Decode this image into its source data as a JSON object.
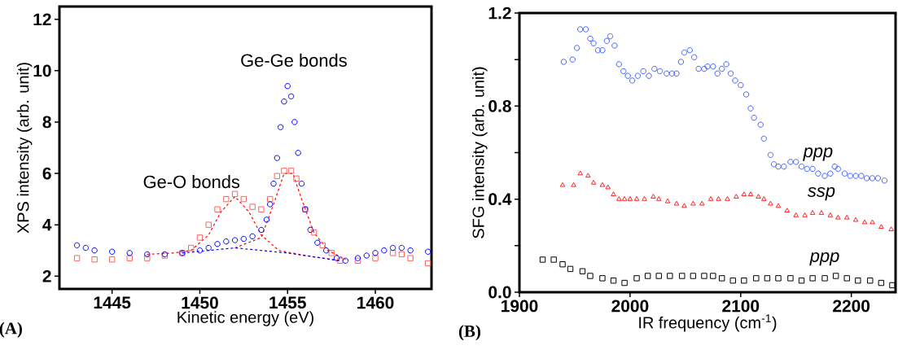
{
  "chart_data": [
    {
      "type": "scatter",
      "xlabel": "Kinetic energy (eV)",
      "ylabel": "XPS intensity (arb. unit)",
      "xlim": [
        1442,
        1463.2
      ],
      "ylim": [
        1.5,
        12.5
      ],
      "xticks": [
        1445,
        1450,
        1455,
        1460
      ],
      "yticks": [
        2,
        4,
        6,
        8,
        10,
        12
      ],
      "series": [
        {
          "type": "line",
          "line_style": "dashed",
          "marker": "none",
          "color": "#ff0000",
          "x": [
            1447,
            1448.5,
            1449.5,
            1450.5,
            1451.2,
            1452,
            1452.8,
            1453.5,
            1454.5,
            1456,
            1458
          ],
          "values": [
            2.85,
            2.9,
            3.0,
            3.6,
            4.5,
            5.1,
            4.5,
            3.6,
            3.0,
            2.8,
            2.6
          ]
        },
        {
          "type": "line",
          "line_style": "dashed",
          "marker": "none",
          "color": "#ff0000",
          "x": [
            1452,
            1453.5,
            1454.2,
            1454.8,
            1455.3,
            1455.8,
            1456.5,
            1457.3,
            1458.3
          ],
          "values": [
            3.1,
            3.5,
            4.8,
            6.0,
            6.0,
            5.0,
            3.7,
            3.0,
            2.65
          ]
        },
        {
          "type": "line",
          "line_style": "dashed",
          "marker": "none",
          "color": "#0000ff",
          "x": [
            1449,
            1452,
            1455,
            1458
          ],
          "values": [
            2.9,
            3.1,
            2.9,
            2.6
          ]
        },
        {
          "marker": "square",
          "color": "#ff6060",
          "x": [
            1443,
            1444,
            1445,
            1446,
            1447,
            1448,
            1449,
            1449.5,
            1450,
            1450.5,
            1451,
            1451.5,
            1452,
            1452.5,
            1453,
            1453.5,
            1454,
            1454.4,
            1454.8,
            1455.2,
            1455.5,
            1456,
            1456.5,
            1457,
            1457.5,
            1458,
            1459,
            1460,
            1461,
            1461.5,
            1462,
            1463
          ],
          "values": [
            2.7,
            2.65,
            2.65,
            2.7,
            2.7,
            2.8,
            2.9,
            3.1,
            3.5,
            4.0,
            4.6,
            5.0,
            5.2,
            5.0,
            4.7,
            4.6,
            5.0,
            5.9,
            6.1,
            6.1,
            5.8,
            4.6,
            3.7,
            3.2,
            2.9,
            2.6,
            2.6,
            2.7,
            2.9,
            2.85,
            2.7,
            2.5
          ]
        },
        {
          "marker": "circle",
          "color": "#0000ff",
          "x": [
            1443,
            1443.5,
            1444,
            1445,
            1446,
            1447,
            1448,
            1449,
            1450,
            1450.5,
            1451,
            1451.5,
            1452,
            1452.5,
            1453,
            1453.5,
            1453.8,
            1454,
            1454.2,
            1454.4,
            1454.6,
            1454.8,
            1455,
            1455.2,
            1455.4,
            1455.6,
            1455.8,
            1456,
            1456.3,
            1456.7,
            1457.2,
            1457.8,
            1458.3,
            1459,
            1459.5,
            1460,
            1460.5,
            1461,
            1461.5,
            1462,
            1463
          ],
          "values": [
            3.2,
            3.1,
            3.0,
            2.95,
            2.9,
            2.85,
            2.85,
            2.9,
            3.0,
            3.1,
            3.25,
            3.35,
            3.4,
            3.45,
            3.55,
            3.8,
            4.2,
            4.8,
            5.6,
            6.6,
            7.8,
            8.8,
            9.4,
            9.0,
            8.0,
            6.8,
            5.6,
            4.6,
            3.8,
            3.3,
            3.0,
            2.7,
            2.6,
            2.7,
            2.8,
            2.9,
            3.0,
            3.1,
            3.1,
            3.0,
            2.95
          ]
        }
      ],
      "annotations": [
        "Ge-Ge bonds",
        "Ge-O bonds",
        "(A)"
      ]
    },
    {
      "type": "scatter",
      "xlabel": "IR frequency (cm$^{-1}$)",
      "ylabel": "SFG intensity (arb. unit)",
      "xlim": [
        1900,
        2240
      ],
      "ylim": [
        0,
        1.2
      ],
      "xticks": [
        1900,
        2000,
        2100,
        2200
      ],
      "yticks": [
        {
          "value": 0,
          "label": "0.0"
        },
        {
          "value": 0.2,
          "label": null
        },
        0.4,
        {
          "value": 0.6,
          "label": null
        },
        0.8,
        {
          "value": 1.0,
          "label": null
        },
        1.2
      ],
      "series": [
        {
          "name": "ppp",
          "marker": "circle",
          "color": "#4060ff",
          "x": [
            1940,
            1948,
            1952,
            1955,
            1960,
            1964,
            1967,
            1971,
            1975,
            1979,
            1982,
            1986,
            1990,
            1994,
            1998,
            2002,
            2007,
            2012,
            2017,
            2022,
            2027,
            2033,
            2038,
            2042,
            2046,
            2049,
            2054,
            2058,
            2062,
            2067,
            2070,
            2075,
            2079,
            2083,
            2087,
            2091,
            2095,
            2100,
            2105,
            2109,
            2112,
            2118,
            2121,
            2127,
            2130,
            2134,
            2139,
            2145,
            2150,
            2155,
            2160,
            2165,
            2170,
            2176,
            2181,
            2185,
            2188,
            2194,
            2199,
            2204,
            2209,
            2214,
            2219,
            2224,
            2230
          ],
          "values": [
            0.99,
            1.0,
            1.05,
            1.13,
            1.13,
            1.09,
            1.07,
            1.04,
            1.04,
            1.08,
            1.1,
            1.06,
            0.98,
            0.95,
            0.93,
            0.91,
            0.93,
            0.95,
            0.93,
            0.96,
            0.95,
            0.94,
            0.94,
            0.94,
            0.99,
            1.03,
            1.04,
            1.01,
            0.96,
            0.96,
            0.97,
            0.97,
            0.94,
            0.96,
            0.98,
            0.94,
            0.91,
            0.89,
            0.85,
            0.79,
            0.75,
            0.72,
            0.66,
            0.59,
            0.55,
            0.54,
            0.54,
            0.56,
            0.56,
            0.54,
            0.53,
            0.53,
            0.51,
            0.5,
            0.51,
            0.54,
            0.53,
            0.51,
            0.5,
            0.5,
            0.5,
            0.49,
            0.49,
            0.49,
            0.48
          ]
        },
        {
          "name": "ssp",
          "marker": "triangle",
          "color": "#ff2020",
          "x": [
            1939,
            1949,
            1955,
            1962,
            1967,
            1975,
            1980,
            1985,
            1990,
            1995,
            2000,
            2006,
            2013,
            2021,
            2026,
            2034,
            2042,
            2049,
            2057,
            2065,
            2073,
            2080,
            2088,
            2096,
            2103,
            2109,
            2116,
            2121,
            2127,
            2134,
            2142,
            2150,
            2158,
            2165,
            2173,
            2181,
            2188,
            2196,
            2204,
            2212,
            2219,
            2227,
            2236
          ],
          "values": [
            0.46,
            0.46,
            0.51,
            0.5,
            0.47,
            0.46,
            0.45,
            0.42,
            0.4,
            0.4,
            0.4,
            0.4,
            0.4,
            0.41,
            0.4,
            0.39,
            0.38,
            0.37,
            0.38,
            0.38,
            0.4,
            0.4,
            0.4,
            0.41,
            0.42,
            0.42,
            0.41,
            0.4,
            0.38,
            0.37,
            0.35,
            0.33,
            0.33,
            0.34,
            0.34,
            0.33,
            0.32,
            0.32,
            0.31,
            0.3,
            0.3,
            0.28,
            0.27
          ]
        },
        {
          "name": "ppp",
          "marker": "square",
          "color": "#000000",
          "x": [
            1921,
            1931,
            1939,
            1946,
            1957,
            1964,
            1975,
            1985,
            1995,
            2006,
            2016,
            2026,
            2036,
            2047,
            2057,
            2067,
            2075,
            2083,
            2093,
            2103,
            2114,
            2124,
            2134,
            2145,
            2155,
            2165,
            2176,
            2186,
            2196,
            2206,
            2217,
            2227,
            2237
          ],
          "values": [
            0.14,
            0.14,
            0.12,
            0.1,
            0.09,
            0.07,
            0.06,
            0.05,
            0.04,
            0.06,
            0.07,
            0.07,
            0.07,
            0.07,
            0.07,
            0.07,
            0.07,
            0.06,
            0.05,
            0.05,
            0.06,
            0.06,
            0.06,
            0.06,
            0.05,
            0.06,
            0.06,
            0.07,
            0.06,
            0.05,
            0.05,
            0.04,
            0.03
          ]
        }
      ],
      "annotations": [
        "(B)"
      ]
    }
  ]
}
